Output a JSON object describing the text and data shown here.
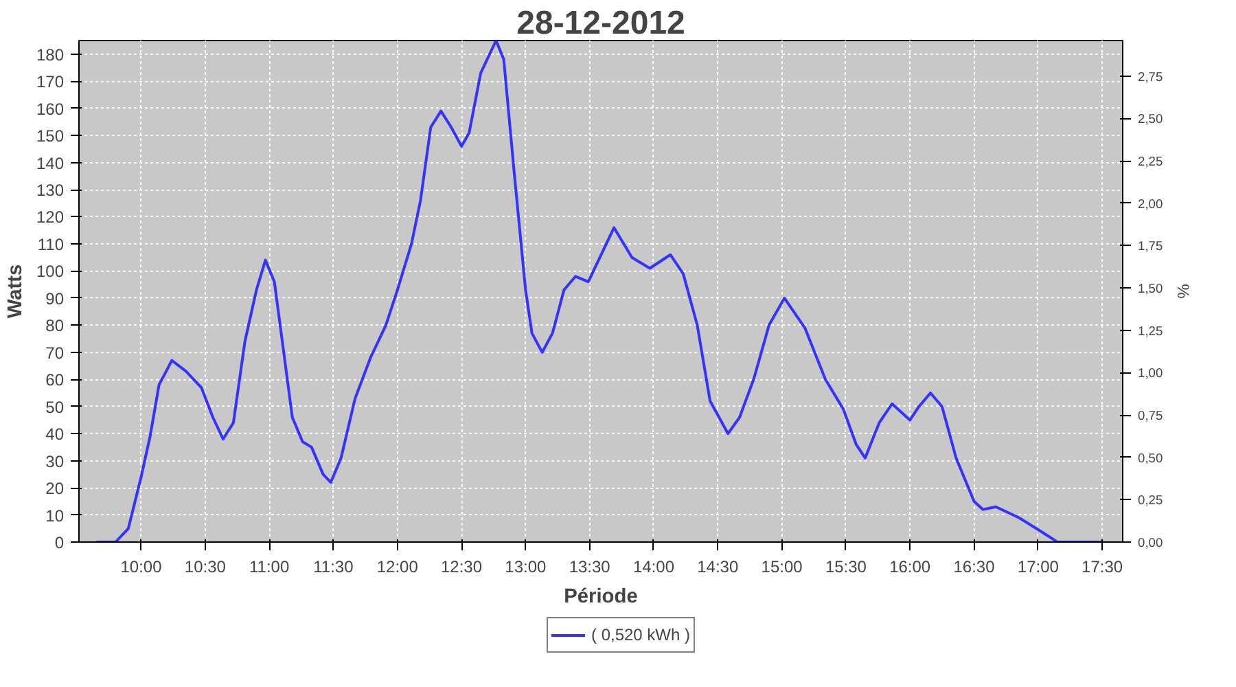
{
  "chart_data": {
    "type": "line",
    "title": "28-12-2012",
    "xlabel": "Période",
    "ylabel": "Watts",
    "y2label": "%",
    "xlim": [
      9.515,
      17.66
    ],
    "ylim": [
      0,
      185
    ],
    "y2lim": [
      0,
      2.96
    ],
    "xticks": [
      {
        "value": 10,
        "label": "10:00"
      },
      {
        "value": 10.5,
        "label": "10:30"
      },
      {
        "value": 11,
        "label": "11:00"
      },
      {
        "value": 11.5,
        "label": "11:30"
      },
      {
        "value": 12,
        "label": "12:00"
      },
      {
        "value": 12.5,
        "label": "12:30"
      },
      {
        "value": 13,
        "label": "13:00"
      },
      {
        "value": 13.5,
        "label": "13:30"
      },
      {
        "value": 14,
        "label": "14:00"
      },
      {
        "value": 14.5,
        "label": "14:30"
      },
      {
        "value": 15,
        "label": "15:00"
      },
      {
        "value": 15.5,
        "label": "15:30"
      },
      {
        "value": 16,
        "label": "16:00"
      },
      {
        "value": 16.5,
        "label": "16:30"
      },
      {
        "value": 17,
        "label": "17:00"
      },
      {
        "value": 17.5,
        "label": "17:30"
      }
    ],
    "yticks": [
      0,
      10,
      20,
      30,
      40,
      50,
      60,
      70,
      80,
      90,
      100,
      110,
      120,
      130,
      140,
      150,
      160,
      170,
      180
    ],
    "y2ticks": [
      {
        "value": 0,
        "label": "0,00"
      },
      {
        "value": 0.25,
        "label": "0,25"
      },
      {
        "value": 0.5,
        "label": "0,50"
      },
      {
        "value": 0.75,
        "label": "0,75"
      },
      {
        "value": 1,
        "label": "1,00"
      },
      {
        "value": 1.25,
        "label": "1,25"
      },
      {
        "value": 1.5,
        "label": "1,50"
      },
      {
        "value": 1.75,
        "label": "1,75"
      },
      {
        "value": 2,
        "label": "2,00"
      },
      {
        "value": 2.25,
        "label": "2,25"
      },
      {
        "value": 2.5,
        "label": "2,50"
      },
      {
        "value": 2.75,
        "label": "2,75"
      }
    ],
    "grid": true,
    "legend": "bottom",
    "line_style": "solid",
    "series": [
      {
        "name": "( 0,520 kWh )",
        "color": "#3333ff",
        "x": [
          9.65,
          9.8,
          9.9,
          10.0,
          10.07,
          10.14,
          10.24,
          10.35,
          10.47,
          10.56,
          10.64,
          10.72,
          10.81,
          10.9,
          10.97,
          11.04,
          11.11,
          11.18,
          11.26,
          11.33,
          11.42,
          11.48,
          11.56,
          11.67,
          11.79,
          11.91,
          12.0,
          12.11,
          12.18,
          12.26,
          12.34,
          12.42,
          12.5,
          12.56,
          12.65,
          12.77,
          12.83,
          12.91,
          13.0,
          13.05,
          13.13,
          13.21,
          13.3,
          13.39,
          13.49,
          13.69,
          13.83,
          13.97,
          14.13,
          14.23,
          14.34,
          14.44,
          14.58,
          14.67,
          14.78,
          14.9,
          15.02,
          15.18,
          15.34,
          15.48,
          15.58,
          15.65,
          15.76,
          15.86,
          16.0,
          16.07,
          16.16,
          16.25,
          16.36,
          16.5,
          16.57,
          16.67,
          16.85,
          17.02,
          17.15,
          17.51
        ],
        "values": [
          0,
          0,
          5,
          24,
          39,
          58,
          67,
          63,
          57,
          46,
          38,
          44,
          74,
          93,
          104,
          96,
          71,
          46,
          37,
          35,
          25,
          22,
          31,
          53,
          68,
          80,
          93,
          110,
          126,
          153,
          159,
          153,
          146,
          151,
          173,
          185,
          178,
          137,
          93,
          77,
          70,
          77,
          93,
          98,
          96,
          116,
          105,
          101,
          106,
          99,
          80,
          52,
          40,
          46,
          60,
          80,
          90,
          79,
          60,
          49,
          36,
          31,
          44,
          51,
          45,
          50,
          55,
          50,
          31,
          15,
          12,
          13,
          9,
          4,
          0,
          0
        ]
      }
    ]
  }
}
